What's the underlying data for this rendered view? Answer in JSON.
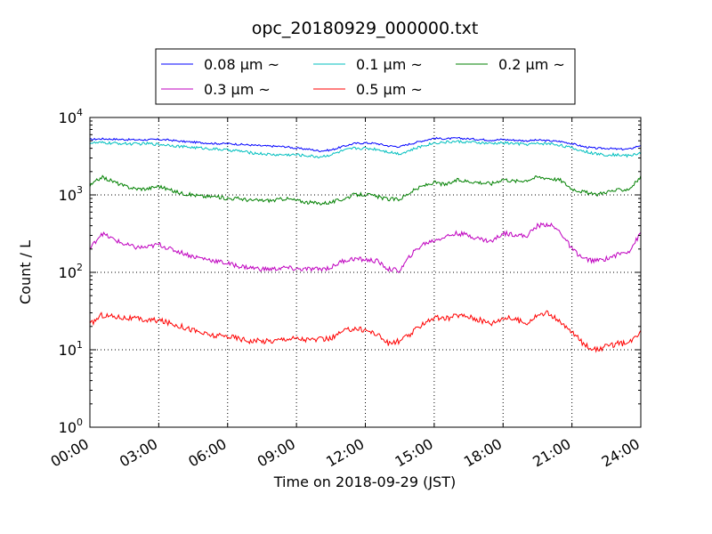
{
  "chart_data": {
    "type": "line",
    "title": "opc_20180929_000000.txt",
    "xlabel": "Time on 2018-09-29 (JST)",
    "ylabel": "Count / L",
    "y_scale": "log",
    "ylim": [
      1,
      10000
    ],
    "xlim": [
      "2018-09-29 00:00",
      "2018-09-30 00:00"
    ],
    "grid": true,
    "legend_position": "top-center, above plot",
    "x_tick_labels": [
      "00:00",
      "03:00",
      "06:00",
      "09:00",
      "12:00",
      "15:00",
      "18:00",
      "21:00",
      "24:00"
    ],
    "y_tick_labels": [
      {
        "base": "10",
        "exp": "0"
      },
      {
        "base": "10",
        "exp": "1"
      },
      {
        "base": "10",
        "exp": "2"
      },
      {
        "base": "10",
        "exp": "3"
      },
      {
        "base": "10",
        "exp": "4"
      }
    ],
    "x": [
      "00:00",
      "00:30",
      "01:00",
      "01:30",
      "02:00",
      "02:30",
      "03:00",
      "03:30",
      "04:00",
      "04:30",
      "05:00",
      "05:30",
      "06:00",
      "06:30",
      "07:00",
      "07:30",
      "08:00",
      "08:30",
      "09:00",
      "09:30",
      "10:00",
      "10:30",
      "11:00",
      "11:30",
      "12:00",
      "12:30",
      "13:00",
      "13:30",
      "14:00",
      "14:30",
      "15:00",
      "15:30",
      "16:00",
      "16:30",
      "17:00",
      "17:30",
      "18:00",
      "18:30",
      "19:00",
      "19:30",
      "20:00",
      "20:30",
      "21:00",
      "21:30",
      "22:00",
      "22:30",
      "23:00",
      "23:30",
      "24:00"
    ],
    "series": [
      {
        "name": "0.08 μm ~",
        "color": "#0000ff",
        "values": [
          5200,
          5300,
          5250,
          5200,
          5150,
          5150,
          5200,
          5100,
          4900,
          4800,
          4700,
          4600,
          4600,
          4500,
          4400,
          4300,
          4250,
          4200,
          4000,
          3900,
          3700,
          3800,
          4200,
          4600,
          4700,
          4600,
          4300,
          4200,
          4600,
          5000,
          5400,
          5300,
          5400,
          5300,
          5200,
          5100,
          5200,
          5100,
          5000,
          5100,
          5000,
          4900,
          4600,
          4200,
          4000,
          4000,
          3900,
          3900,
          4400
        ]
      },
      {
        "name": "0.1 μm ~",
        "color": "#00bfbf",
        "values": [
          4700,
          4700,
          4650,
          4600,
          4550,
          4600,
          4500,
          4400,
          4200,
          4100,
          4000,
          3900,
          3800,
          3700,
          3500,
          3400,
          3300,
          3300,
          3300,
          3200,
          3100,
          3300,
          3700,
          4000,
          4000,
          3900,
          3600,
          3400,
          3800,
          4300,
          4700,
          4800,
          4900,
          4800,
          4700,
          4600,
          4700,
          4600,
          4500,
          4600,
          4600,
          4400,
          4000,
          3700,
          3400,
          3300,
          3300,
          3200,
          3500
        ]
      },
      {
        "name": "0.2 μm ~",
        "color": "#008000",
        "values": [
          1300,
          1700,
          1500,
          1300,
          1200,
          1200,
          1300,
          1150,
          1050,
          1000,
          950,
          950,
          900,
          900,
          850,
          850,
          850,
          900,
          850,
          800,
          780,
          800,
          880,
          1000,
          1020,
          950,
          880,
          880,
          1100,
          1300,
          1450,
          1350,
          1550,
          1500,
          1450,
          1400,
          1600,
          1500,
          1550,
          1700,
          1650,
          1550,
          1200,
          1100,
          1000,
          1100,
          1150,
          1200,
          1700
        ]
      },
      {
        "name": "0.3 μm ~",
        "color": "#bf00bf",
        "values": [
          200,
          320,
          270,
          230,
          210,
          210,
          230,
          200,
          180,
          160,
          150,
          140,
          130,
          120,
          115,
          110,
          110,
          115,
          110,
          110,
          110,
          115,
          140,
          150,
          145,
          140,
          110,
          105,
          170,
          230,
          260,
          290,
          320,
          300,
          270,
          250,
          320,
          310,
          290,
          400,
          420,
          330,
          200,
          150,
          140,
          150,
          170,
          190,
          320
        ]
      },
      {
        "name": "0.5 μm ~",
        "color": "#ff0000",
        "values": [
          21,
          28,
          27,
          26,
          25,
          24,
          24,
          22,
          20,
          18,
          16,
          15,
          15,
          14,
          13,
          13,
          13,
          14,
          14,
          13.5,
          13.5,
          14,
          17,
          19,
          18,
          16,
          12,
          13,
          16,
          22,
          26,
          25,
          28,
          27,
          24,
          22,
          26,
          25,
          22,
          28,
          30,
          22,
          17,
          12,
          10,
          11,
          12,
          12,
          18
        ]
      }
    ]
  }
}
